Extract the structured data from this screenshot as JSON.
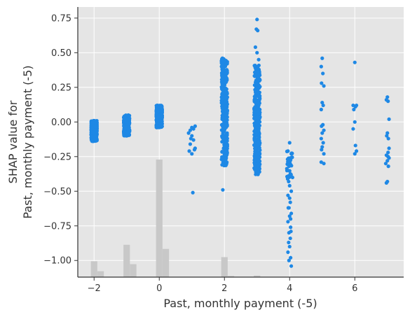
{
  "chart_data": {
    "type": "scatter",
    "xlabel": "Past, monthly payment (-5)",
    "ylabel_lines": [
      "SHAP value for",
      "Past, monthly payment (-5)"
    ],
    "xlim": [
      -2.5,
      7.5
    ],
    "ylim": [
      -1.12,
      0.83
    ],
    "x_ticks": [
      -2,
      0,
      2,
      4,
      6
    ],
    "x_tick_labels": [
      "−2",
      "0",
      "2",
      "4",
      "6"
    ],
    "y_ticks": [
      0.75,
      0.5,
      0.25,
      0.0,
      -0.25,
      -0.5,
      -0.75,
      -1.0
    ],
    "y_tick_labels": [
      "0.75",
      "0.50",
      "0.25",
      "0.00",
      "−0.25",
      "−0.50",
      "−0.75",
      "−1.00"
    ],
    "grid": true,
    "background": "#e5e5e5",
    "point_color": "#1e88e5",
    "hist_color": "#c8c8c8",
    "clusters": [
      {
        "x": -2,
        "y_min": -0.14,
        "y_max": 0.01,
        "n": 340
      },
      {
        "x": -1,
        "y_min": -0.1,
        "y_max": 0.05,
        "n": 340
      },
      {
        "x": 0,
        "y_min": -0.04,
        "y_max": 0.12,
        "n": 420
      },
      {
        "x": 2,
        "y_min": -0.32,
        "y_max": 0.46,
        "n": 360
      },
      {
        "x": 3,
        "y_min": -0.38,
        "y_max": 0.41,
        "n": 300
      },
      {
        "x": 4,
        "y_min": -0.2,
        "y_max": -0.42,
        "n": 30
      }
    ],
    "points": [
      [
        1.0,
        -0.04
      ],
      [
        1.05,
        -0.05
      ],
      [
        0.95,
        -0.06
      ],
      [
        1.1,
        -0.03
      ],
      [
        0.9,
        -0.08
      ],
      [
        1.0,
        -0.1
      ],
      [
        1.05,
        -0.13
      ],
      [
        0.95,
        -0.16
      ],
      [
        1.08,
        -0.2
      ],
      [
        0.92,
        -0.21
      ],
      [
        1.0,
        -0.23
      ],
      [
        1.1,
        -0.19
      ],
      [
        0.97,
        -0.12
      ],
      [
        1.03,
        -0.51
      ],
      [
        1.95,
        -0.49
      ],
      [
        2.0,
        -0.29
      ],
      [
        2.05,
        -0.26
      ],
      [
        1.97,
        -0.25
      ],
      [
        3.0,
        0.74
      ],
      [
        2.98,
        0.67
      ],
      [
        3.02,
        0.66
      ],
      [
        2.95,
        0.54
      ],
      [
        3.0,
        0.5
      ],
      [
        3.05,
        0.45
      ],
      [
        2.97,
        -0.34
      ],
      [
        3.03,
        -0.37
      ],
      [
        4.0,
        -0.15
      ],
      [
        3.95,
        -0.21
      ],
      [
        4.05,
        -0.23
      ],
      [
        4.02,
        -0.26
      ],
      [
        3.97,
        -0.31
      ],
      [
        4.0,
        -0.46
      ],
      [
        4.05,
        -0.5
      ],
      [
        3.95,
        -0.53
      ],
      [
        4.02,
        -0.58
      ],
      [
        3.98,
        -0.62
      ],
      [
        4.05,
        -0.66
      ],
      [
        4.0,
        -0.68
      ],
      [
        3.95,
        -0.72
      ],
      [
        4.03,
        -0.76
      ],
      [
        3.98,
        -0.8
      ],
      [
        4.02,
        -0.84
      ],
      [
        3.97,
        -0.87
      ],
      [
        4.0,
        -0.9
      ],
      [
        3.95,
        -0.94
      ],
      [
        3.98,
        -1.0
      ],
      [
        4.05,
        -1.04
      ],
      [
        4.03,
        -0.98
      ],
      [
        4.0,
        -0.55
      ],
      [
        3.97,
        -0.43
      ],
      [
        4.03,
        -0.7
      ],
      [
        3.96,
        -0.62
      ],
      [
        4.04,
        -0.79
      ],
      [
        5.0,
        0.46
      ],
      [
        4.97,
        0.4
      ],
      [
        5.02,
        0.35
      ],
      [
        4.98,
        0.28
      ],
      [
        5.05,
        0.26
      ],
      [
        5.0,
        0.14
      ],
      [
        5.03,
        0.12
      ],
      [
        4.97,
        0.09
      ],
      [
        5.02,
        -0.02
      ],
      [
        4.98,
        -0.03
      ],
      [
        5.05,
        -0.06
      ],
      [
        5.0,
        -0.08
      ],
      [
        4.97,
        -0.12
      ],
      [
        5.03,
        -0.15
      ],
      [
        5.0,
        -0.18
      ],
      [
        4.98,
        -0.2
      ],
      [
        5.05,
        -0.23
      ],
      [
        4.97,
        -0.29
      ],
      [
        5.05,
        -0.3
      ],
      [
        6.0,
        0.43
      ],
      [
        5.95,
        0.12
      ],
      [
        6.02,
        0.11
      ],
      [
        5.97,
        0.09
      ],
      [
        6.05,
        0.12
      ],
      [
        6.0,
        0.0
      ],
      [
        5.95,
        -0.05
      ],
      [
        6.02,
        -0.17
      ],
      [
        6.05,
        -0.21
      ],
      [
        6.0,
        -0.23
      ],
      [
        7.0,
        0.18
      ],
      [
        6.97,
        0.16
      ],
      [
        7.02,
        0.15
      ],
      [
        7.05,
        0.02
      ],
      [
        7.0,
        -0.08
      ],
      [
        6.98,
        -0.1
      ],
      [
        7.03,
        -0.12
      ],
      [
        7.05,
        -0.19
      ],
      [
        6.97,
        -0.24
      ],
      [
        7.02,
        -0.25
      ],
      [
        7.05,
        -0.26
      ],
      [
        7.0,
        -0.28
      ],
      [
        6.95,
        -0.3
      ],
      [
        7.03,
        -0.32
      ],
      [
        7.0,
        -0.43
      ],
      [
        6.97,
        -0.44
      ],
      [
        7.02,
        -0.22
      ]
    ],
    "histogram": [
      {
        "x": -2,
        "value": 0.135
      },
      {
        "x": -1.8,
        "value": 0.05
      },
      {
        "x": -1,
        "value": 0.275
      },
      {
        "x": -0.8,
        "value": 0.11
      },
      {
        "x": 0,
        "value": 1.0
      },
      {
        "x": 0.2,
        "value": 0.24
      },
      {
        "x": 2,
        "value": 0.17
      },
      {
        "x": 2.2,
        "value": 0.01
      },
      {
        "x": 3,
        "value": 0.013
      },
      {
        "x": 4,
        "value": 0.003
      },
      {
        "x": 5,
        "value": 0.002
      },
      {
        "x": 6,
        "value": 0.002
      },
      {
        "x": 7,
        "value": 0.002
      }
    ]
  }
}
